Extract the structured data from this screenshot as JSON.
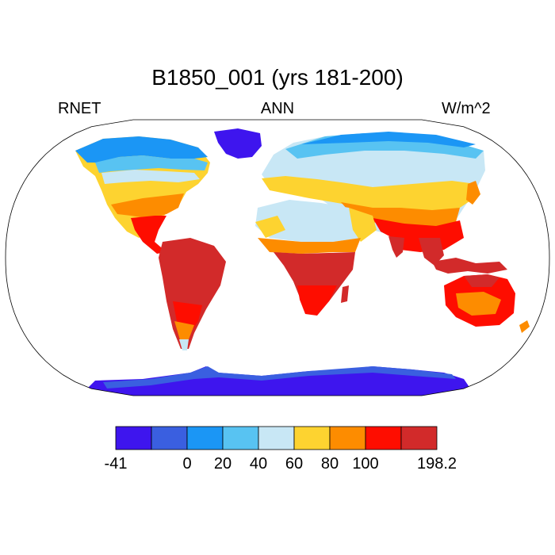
{
  "title": "B1850_001 (yrs 181-200)",
  "subtitle": {
    "left": "RNET",
    "center": "ANN",
    "right": "W/m^2"
  },
  "colorbar": {
    "colors": [
      "#3e15ee",
      "#3a5fe0",
      "#1b96f5",
      "#58c3f2",
      "#c8e7f5",
      "#fdd330",
      "#fd8c00",
      "#fe0d00",
      "#d22a2a"
    ],
    "boundary_labels": [
      "-41",
      "",
      "0",
      "20",
      "40",
      "60",
      "80",
      "100",
      "",
      "198.2"
    ]
  },
  "map": {
    "projection": "Robinson",
    "ocean_color": "#ffffff",
    "coastline_color": "#000000"
  }
}
